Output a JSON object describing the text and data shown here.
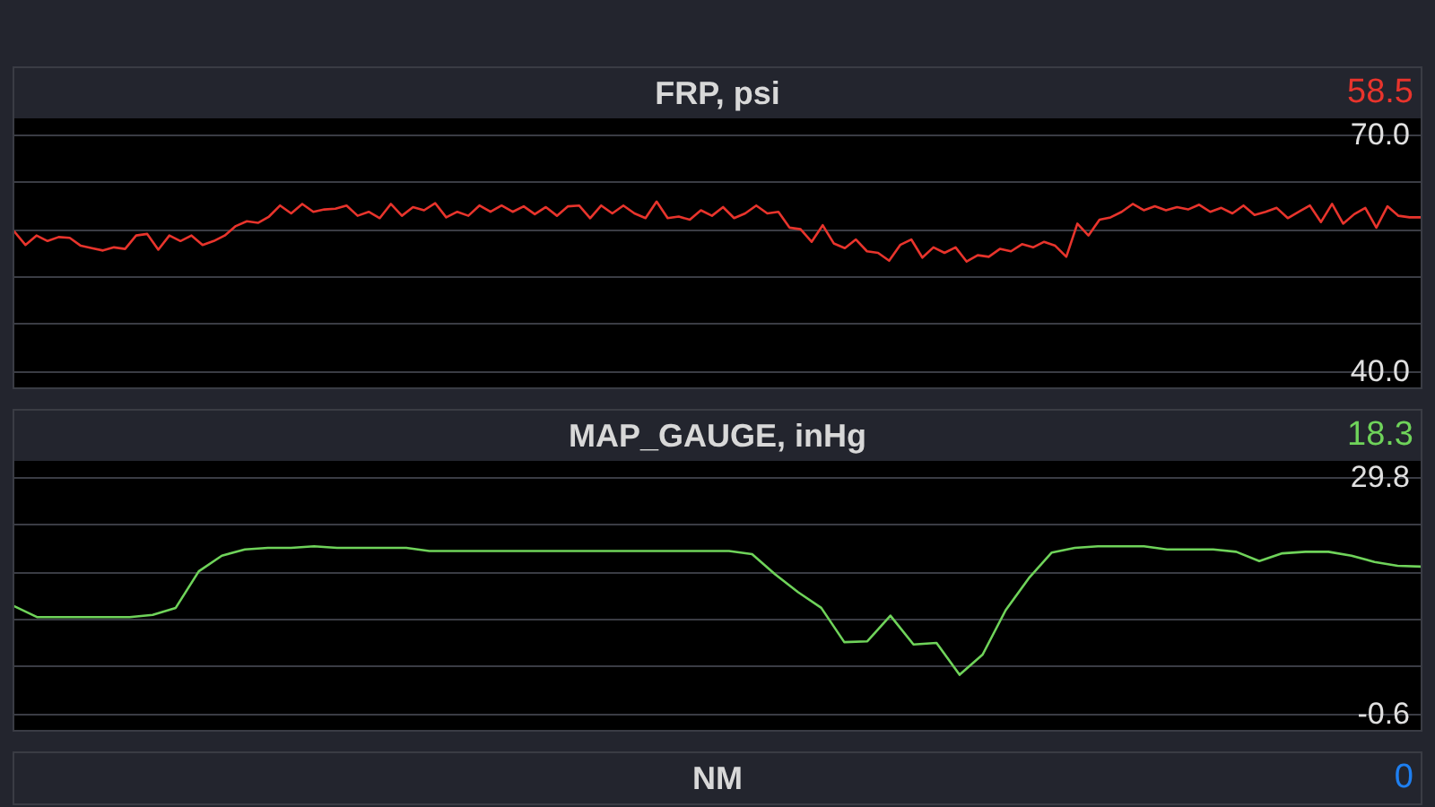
{
  "chart_data": [
    {
      "type": "line",
      "title": "FRP, psi",
      "annotations": [
        "58.5"
      ],
      "categories": [
        null,
        null,
        null,
        null,
        null,
        null,
        null,
        null,
        null,
        null,
        null,
        null,
        null,
        null,
        null,
        null,
        null,
        null,
        null,
        null,
        null,
        null,
        null,
        null,
        null,
        null,
        null,
        null,
        null,
        null,
        null,
        null,
        null,
        null,
        null,
        null,
        null,
        null,
        null,
        null,
        null,
        null,
        null,
        null,
        null,
        null,
        null,
        null,
        null,
        null,
        null,
        null,
        null,
        null,
        null,
        null,
        null,
        null,
        null,
        null,
        null,
        null,
        null,
        null,
        null,
        null,
        null,
        null,
        null,
        null,
        null,
        null,
        null,
        null,
        null,
        null,
        null,
        null,
        null,
        null,
        null,
        null,
        null,
        null,
        null,
        null,
        null,
        null,
        null,
        null,
        null,
        null,
        null,
        null,
        null,
        null,
        null,
        null,
        null,
        null,
        null,
        null,
        null,
        null,
        null,
        null,
        null,
        null,
        null,
        null,
        null,
        null,
        null,
        null,
        null,
        null,
        null,
        null,
        null,
        null,
        null,
        null,
        null,
        null,
        null,
        null,
        null,
        null
      ],
      "series": [
        {
          "color": "#e8342c",
          "values": [
            57.7,
            56.0,
            57.2,
            56.5,
            57.0,
            56.9,
            55.9,
            55.6,
            55.3,
            55.7,
            55.5,
            57.2,
            57.4,
            55.4,
            57.2,
            56.5,
            57.2,
            56.0,
            56.5,
            57.2,
            58.4,
            59.0,
            58.8,
            59.6,
            61.0,
            60.0,
            61.2,
            60.2,
            60.5,
            60.6,
            61.0,
            59.7,
            60.2,
            59.4,
            61.2,
            59.7,
            60.8,
            60.4,
            61.3,
            59.5,
            60.2,
            59.7,
            61.0,
            60.2,
            61.0,
            60.2,
            60.9,
            59.9,
            60.8,
            59.7,
            60.9,
            61.0,
            59.4,
            61.0,
            60.0,
            61.0,
            60.0,
            59.4,
            61.5,
            59.4,
            59.6,
            59.2,
            60.4,
            59.7,
            60.8,
            59.4,
            60.0,
            61.0,
            60.0,
            60.2,
            58.2,
            58.0,
            56.4,
            58.5,
            56.2,
            55.6,
            56.7,
            55.2,
            55.0,
            54.0,
            56.0,
            56.7,
            54.4,
            55.7,
            55.0,
            55.7,
            53.9,
            54.7,
            54.5,
            55.5,
            55.2,
            56.1,
            55.7,
            56.4,
            55.9,
            54.5,
            58.7,
            57.2,
            59.2,
            59.5,
            60.2,
            61.2,
            60.4,
            60.9,
            60.4,
            60.8,
            60.5,
            61.1,
            60.2,
            60.7,
            60.0,
            61.0,
            59.8,
            60.2,
            60.7,
            59.4,
            60.2,
            61.0,
            58.9,
            61.2,
            58.7,
            59.9,
            60.7,
            58.2,
            60.9,
            59.7,
            59.5,
            59.5
          ]
        }
      ],
      "ylim": [
        40,
        70
      ],
      "yticks": [
        {
          "value": 40,
          "label": "40.0"
        },
        {
          "value": 46,
          "label": null
        },
        {
          "value": 52,
          "label": null
        },
        {
          "value": 58,
          "label": null
        },
        {
          "value": 64,
          "label": null
        },
        {
          "value": 70,
          "label": "70.0"
        }
      ],
      "grid": "y",
      "marker": "none",
      "line_style": "solid",
      "tick_labels": "y"
    },
    {
      "type": "line",
      "title": "MAP_GAUGE, inHg",
      "annotations": [
        "18.3"
      ],
      "categories": [
        null,
        null,
        null,
        null,
        null,
        null,
        null,
        null,
        null,
        null,
        null,
        null,
        null,
        null,
        null,
        null,
        null,
        null,
        null,
        null,
        null,
        null,
        null,
        null,
        null,
        null,
        null,
        null,
        null,
        null,
        null,
        null,
        null,
        null,
        null,
        null,
        null,
        null,
        null,
        null,
        null,
        null,
        null,
        null,
        null,
        null,
        null,
        null,
        null,
        null,
        null,
        null,
        null,
        null,
        null,
        null,
        null,
        null,
        null,
        null,
        null,
        null
      ],
      "series": [
        {
          "color": "#6fd35a",
          "values": [
            13.2,
            11.8,
            11.8,
            11.8,
            11.8,
            11.8,
            12.1,
            13.0,
            17.7,
            19.7,
            20.5,
            20.7,
            20.7,
            20.9,
            20.7,
            20.7,
            20.7,
            20.7,
            20.3,
            20.3,
            20.3,
            20.3,
            20.3,
            20.3,
            20.3,
            20.3,
            20.3,
            20.3,
            20.3,
            20.3,
            20.3,
            20.3,
            19.9,
            17.3,
            15.0,
            13.0,
            8.6,
            8.7,
            12.0,
            8.3,
            8.5,
            4.4,
            7.0,
            12.7,
            16.8,
            20.1,
            20.7,
            20.9,
            20.9,
            20.9,
            20.5,
            20.5,
            20.5,
            20.2,
            19.0,
            20.0,
            20.2,
            20.2,
            19.7,
            18.9,
            18.4,
            18.3
          ]
        }
      ],
      "ylim": [
        -0.6,
        29.8
      ],
      "yticks": [
        {
          "value": -0.6,
          "label": "-0.6"
        },
        {
          "value": 5.48,
          "label": null
        },
        {
          "value": 11.56,
          "label": null
        },
        {
          "value": 17.64,
          "label": null
        },
        {
          "value": 23.72,
          "label": null
        },
        {
          "value": 29.8,
          "label": "29.8"
        }
      ],
      "grid": "y",
      "marker": "none",
      "line_style": "solid",
      "tick_labels": "y"
    },
    {
      "type": "other",
      "title": "NM",
      "annotations": [
        "0"
      ]
    }
  ]
}
